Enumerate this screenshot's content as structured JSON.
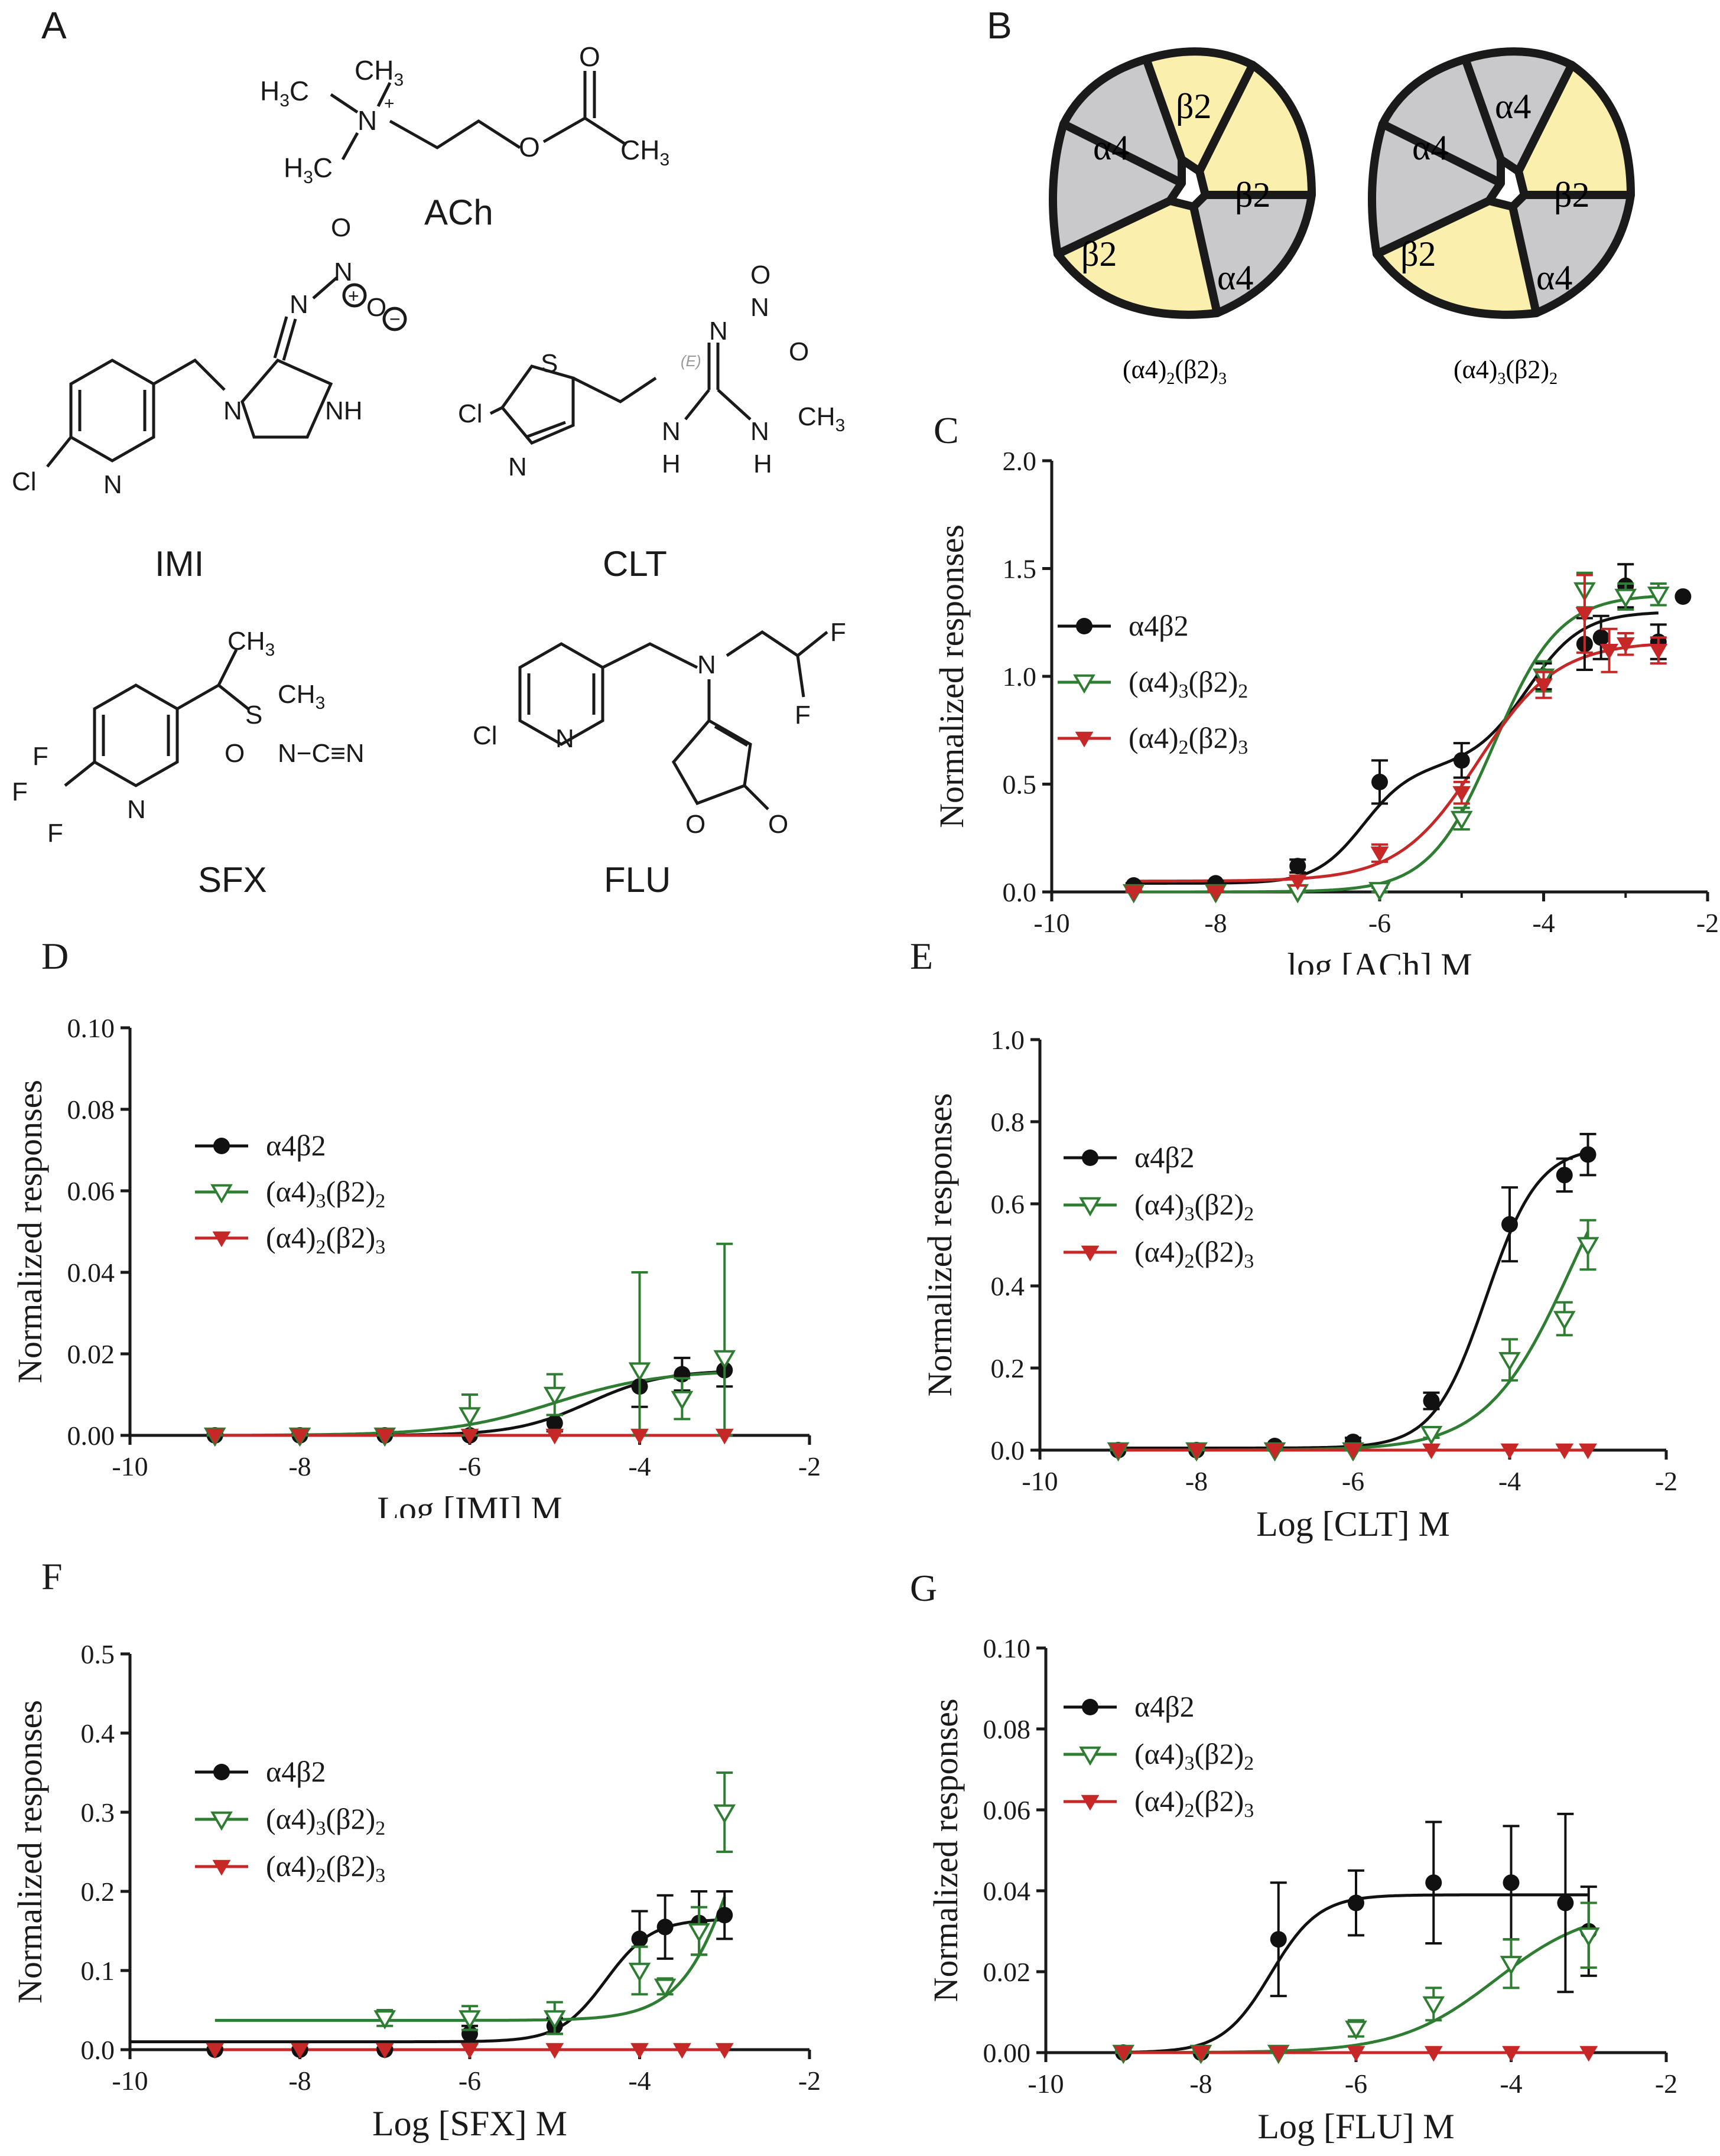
{
  "panels": {
    "A": "A",
    "B": "B",
    "C": "C",
    "D": "D",
    "E": "E",
    "F": "F",
    "G": "G"
  },
  "colors": {
    "a4b2": "#111111",
    "a43b22": "#2e7d32",
    "a42b23": "#c62828",
    "alpha_subunit": "#c9c9cc",
    "beta_subunit": "#fbefae"
  },
  "compounds": {
    "ach": "ACh",
    "imi": "IMI",
    "clt": "CLT",
    "sfx": "SFX",
    "flu": "FLU"
  },
  "receptors": {
    "left_caption_main": "(α4)",
    "left_caption_sub1": "2",
    "left_caption_mid": "(β2)",
    "left_caption_sub2": "3",
    "right_caption_main": "(α4)",
    "right_caption_sub1": "3",
    "right_caption_mid": "(β2)",
    "right_caption_sub2": "2",
    "alpha_label": "α4",
    "beta_label": "β2"
  },
  "legend": {
    "s1": "α4β2",
    "s2_a": "(α4)",
    "s2_b": "3",
    "s2_c": "(β2)",
    "s2_d": "2",
    "s3_a": "(α4)",
    "s3_b": "2",
    "s3_c": "(β2)",
    "s3_d": "3"
  },
  "chart_data": [
    {
      "panel": "C",
      "type": "scatter",
      "xlabel": "log [ACh] M",
      "ylabel": "Normalized responses",
      "xlim": [
        -10,
        -2
      ],
      "ylim": [
        0,
        2.0
      ],
      "xticks": [
        -10,
        -8,
        -6,
        -4,
        -2
      ],
      "yticks": [
        0.0,
        0.5,
        1.0,
        1.5,
        2.0
      ],
      "series": [
        {
          "name": "α4β2",
          "x": [
            -9,
            -8,
            -7,
            -6,
            -5,
            -4,
            -3.5,
            -3.3,
            -3,
            -2.6,
            -2.3
          ],
          "y": [
            0.03,
            0.04,
            0.12,
            0.51,
            0.61,
            1.0,
            1.15,
            1.18,
            1.42,
            1.16,
            1.37
          ],
          "err": [
            0.01,
            0.01,
            0.03,
            0.1,
            0.08,
            0.06,
            0.12,
            0.1,
            0.1,
            0.08,
            0.0
          ]
        },
        {
          "name": "(α4)3(β2)2",
          "x": [
            -9,
            -8,
            -7,
            -6,
            -5,
            -4,
            -3.5,
            -3,
            -2.6
          ],
          "y": [
            0.0,
            0.0,
            0.0,
            0.01,
            0.34,
            1.0,
            1.4,
            1.37,
            1.38
          ],
          "err": [
            0.01,
            0.01,
            0.01,
            0.01,
            0.05,
            0.07,
            0.08,
            0.06,
            0.05
          ]
        },
        {
          "name": "(α4)2(β2)3",
          "x": [
            -9,
            -8,
            -7,
            -6,
            -5,
            -4,
            -3.5,
            -3.2,
            -3,
            -2.6
          ],
          "y": [
            0.0,
            0.0,
            0.05,
            0.18,
            0.46,
            0.96,
            1.29,
            1.12,
            1.15,
            1.12
          ],
          "err": [
            0.01,
            0.01,
            0.02,
            0.04,
            0.05,
            0.06,
            0.18,
            0.1,
            0.05,
            0.06
          ]
        }
      ]
    },
    {
      "panel": "D",
      "type": "scatter",
      "xlabel": "Log [IMI] M",
      "ylabel": "Normalized responses",
      "xlim": [
        -10,
        -2
      ],
      "ylim": [
        0,
        0.1
      ],
      "xticks": [
        -10,
        -8,
        -6,
        -4,
        -2
      ],
      "yticks": [
        0.0,
        0.02,
        0.04,
        0.06,
        0.08,
        0.1
      ],
      "series": [
        {
          "name": "α4β2",
          "x": [
            -9,
            -8,
            -7,
            -6,
            -5,
            -4,
            -3.5,
            -3
          ],
          "y": [
            0.0,
            0.0,
            0.0,
            0.0,
            0.003,
            0.012,
            0.015,
            0.016
          ],
          "err": [
            0.0005,
            0.0005,
            0.0005,
            0.0005,
            0.002,
            0.005,
            0.004,
            0.004
          ]
        },
        {
          "name": "(α4)3(β2)2",
          "x": [
            -9,
            -8,
            -7,
            -6,
            -5,
            -4,
            -3.5,
            -3
          ],
          "y": [
            0.0,
            0.0,
            0.0,
            0.005,
            0.01,
            0.016,
            0.009,
            0.019
          ],
          "err": [
            0.001,
            0.001,
            0.001,
            0.005,
            0.005,
            0.024,
            0.005,
            0.028
          ]
        },
        {
          "name": "(α4)2(β2)3",
          "x": [
            -9,
            -8,
            -7,
            -6,
            -5,
            -4,
            -3
          ],
          "y": [
            0.0,
            0.0,
            0.0,
            0.0,
            0.0,
            0.0,
            0.0
          ],
          "err": [
            0,
            0,
            0,
            0,
            0,
            0,
            0
          ]
        }
      ]
    },
    {
      "panel": "E",
      "type": "scatter",
      "xlabel": "Log [CLT] M",
      "ylabel": "Normalized responses",
      "xlim": [
        -10,
        -2
      ],
      "ylim": [
        0,
        1.0
      ],
      "xticks": [
        -10,
        -8,
        -6,
        -4,
        -2
      ],
      "yticks": [
        0.0,
        0.2,
        0.4,
        0.6,
        0.8,
        1.0
      ],
      "series": [
        {
          "name": "α4β2",
          "x": [
            -9,
            -8,
            -7,
            -6,
            -5,
            -4,
            -3.3,
            -3
          ],
          "y": [
            0.0,
            0.0,
            0.01,
            0.02,
            0.12,
            0.55,
            0.67,
            0.72
          ],
          "err": [
            0.005,
            0.005,
            0.005,
            0.01,
            0.02,
            0.09,
            0.04,
            0.05
          ]
        },
        {
          "name": "(α4)3(β2)2",
          "x": [
            -9,
            -8,
            -7,
            -6,
            -5,
            -4,
            -3.3,
            -3
          ],
          "y": [
            0.0,
            0.0,
            0.0,
            0.0,
            0.04,
            0.22,
            0.32,
            0.5
          ],
          "err": [
            0.005,
            0.005,
            0.005,
            0.005,
            0.01,
            0.05,
            0.04,
            0.06
          ]
        },
        {
          "name": "(α4)2(β2)3",
          "x": [
            -9,
            -8,
            -7,
            -6,
            -5,
            -4,
            -3.3,
            -3
          ],
          "y": [
            0.0,
            0.0,
            0.0,
            0.0,
            0.0,
            0.0,
            0.0,
            0.0
          ],
          "err": [
            0,
            0,
            0,
            0,
            0,
            0,
            0,
            0
          ]
        }
      ]
    },
    {
      "panel": "F",
      "type": "scatter",
      "xlabel": "Log [SFX] M",
      "ylabel": "Normalized responses",
      "xlim": [
        -10,
        -2
      ],
      "ylim": [
        0,
        0.5
      ],
      "xticks": [
        -10,
        -8,
        -6,
        -4,
        -2
      ],
      "yticks": [
        0.0,
        0.1,
        0.2,
        0.3,
        0.4,
        0.5
      ],
      "series": [
        {
          "name": "α4β2",
          "x": [
            -9,
            -8,
            -7,
            -6,
            -5,
            -4,
            -3.7,
            -3.3,
            -3
          ],
          "y": [
            0.0,
            0.0,
            0.0,
            0.02,
            0.03,
            0.14,
            0.155,
            0.16,
            0.17
          ],
          "err": [
            0.002,
            0.002,
            0.002,
            0.01,
            0.01,
            0.035,
            0.04,
            0.04,
            0.03
          ]
        },
        {
          "name": "(α4)3(β2)2",
          "x": [
            -7,
            -6,
            -5,
            -4,
            -3.7,
            -3.3,
            -3
          ],
          "y": [
            0.04,
            0.04,
            0.04,
            0.1,
            0.08,
            0.15,
            0.3
          ],
          "err": [
            0.01,
            0.015,
            0.02,
            0.03,
            0.01,
            0.03,
            0.05
          ]
        },
        {
          "name": "(α4)2(β2)3",
          "x": [
            -9,
            -8,
            -7,
            -6,
            -5,
            -4,
            -3.5,
            -3
          ],
          "y": [
            0.0,
            0.0,
            0.0,
            0.0,
            0.0,
            0.0,
            0.0,
            0.0
          ],
          "err": [
            0,
            0,
            0,
            0,
            0,
            0,
            0,
            0
          ]
        }
      ]
    },
    {
      "panel": "G",
      "type": "scatter",
      "xlabel": "Log [FLU] M",
      "ylabel": "Normalized responses",
      "xlim": [
        -10,
        -2
      ],
      "ylim": [
        0,
        0.1
      ],
      "xticks": [
        -10,
        -8,
        -6,
        -4,
        -2
      ],
      "yticks": [
        0.0,
        0.02,
        0.04,
        0.06,
        0.08,
        0.1
      ],
      "series": [
        {
          "name": "α4β2",
          "x": [
            -9,
            -8,
            -7,
            -6,
            -5,
            -4,
            -3.3,
            -3
          ],
          "y": [
            0.0,
            0.0,
            0.028,
            0.037,
            0.042,
            0.042,
            0.037,
            0.03
          ],
          "err": [
            0.0005,
            0.0005,
            0.014,
            0.008,
            0.015,
            0.014,
            0.022,
            0.011
          ]
        },
        {
          "name": "(α4)3(β2)2",
          "x": [
            -9,
            -8,
            -7,
            -6,
            -5,
            -4,
            -3
          ],
          "y": [
            0.0,
            0.0,
            0.0,
            0.006,
            0.012,
            0.022,
            0.029
          ],
          "err": [
            0.0005,
            0.0005,
            0.0005,
            0.002,
            0.004,
            0.006,
            0.008
          ]
        },
        {
          "name": "(α4)2(β2)3",
          "x": [
            -9,
            -8,
            -7,
            -6,
            -5,
            -4,
            -3
          ],
          "y": [
            0.0,
            0.0,
            0.0,
            0.0,
            0.0,
            0.0,
            0.0
          ],
          "err": [
            0,
            0,
            0,
            0,
            0,
            0,
            0
          ]
        }
      ]
    }
  ]
}
